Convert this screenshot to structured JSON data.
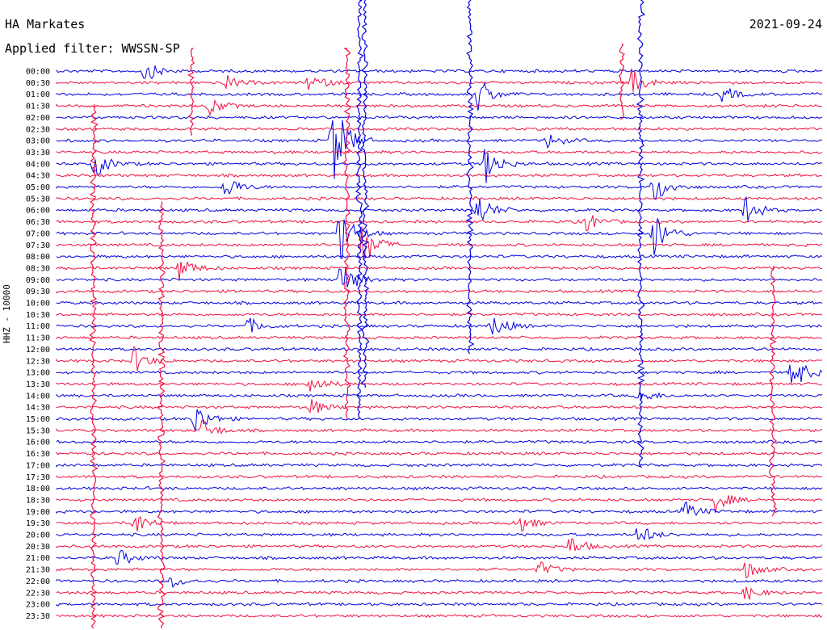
{
  "header": {
    "station": "HA Markates",
    "date": "2021-09-24",
    "filter": "Applied filter: WWSSN-SP"
  },
  "axis": {
    "ylabel": "HHZ - 10000"
  },
  "colors": {
    "line_a": "#0000e0",
    "line_b": "#f01040"
  },
  "chart_data": {
    "type": "line",
    "title": "HA Markates",
    "ylabel": "HHZ - 10000",
    "date": "2021-09-24",
    "filter": "WWSSN-SP",
    "rows": [
      "00:00",
      "00:30",
      "01:00",
      "01:30",
      "02:00",
      "02:30",
      "03:00",
      "03:30",
      "04:00",
      "04:30",
      "05:00",
      "05:30",
      "06:00",
      "06:30",
      "07:00",
      "07:30",
      "08:00",
      "08:30",
      "09:00",
      "09:30",
      "10:00",
      "10:30",
      "11:00",
      "11:30",
      "12:00",
      "12:30",
      "13:00",
      "13:30",
      "14:00",
      "14:30",
      "15:00",
      "15:30",
      "16:00",
      "16:30",
      "17:00",
      "17:30",
      "18:00",
      "18:30",
      "19:00",
      "19:30",
      "20:00",
      "20:30",
      "21:00",
      "21:30",
      "22:00",
      "22:30",
      "23:00",
      "23:30"
    ],
    "row_colors": [
      "blue",
      "red"
    ],
    "x_range_minutes": [
      0,
      30
    ],
    "events": [
      {
        "row": 0,
        "x": 0.115,
        "amp": 14
      },
      {
        "row": 1,
        "x": 0.22,
        "amp": 10
      },
      {
        "row": 1,
        "x": 0.33,
        "amp": 12
      },
      {
        "row": 1,
        "x": 0.75,
        "amp": 18
      },
      {
        "row": 2,
        "x": 0.55,
        "amp": 22
      },
      {
        "row": 2,
        "x": 0.87,
        "amp": 10
      },
      {
        "row": 3,
        "x": 0.2,
        "amp": 12
      },
      {
        "row": 6,
        "x": 0.36,
        "amp": 60
      },
      {
        "row": 6,
        "x": 0.64,
        "amp": 10
      },
      {
        "row": 8,
        "x": 0.05,
        "amp": 18
      },
      {
        "row": 8,
        "x": 0.56,
        "amp": 25
      },
      {
        "row": 10,
        "x": 0.22,
        "amp": 16
      },
      {
        "row": 10,
        "x": 0.78,
        "amp": 22
      },
      {
        "row": 12,
        "x": 0.55,
        "amp": 22
      },
      {
        "row": 12,
        "x": 0.9,
        "amp": 18
      },
      {
        "row": 13,
        "x": 0.69,
        "amp": 14
      },
      {
        "row": 14,
        "x": 0.37,
        "amp": 40
      },
      {
        "row": 14,
        "x": 0.78,
        "amp": 30
      },
      {
        "row": 15,
        "x": 0.4,
        "amp": 30
      },
      {
        "row": 17,
        "x": 0.16,
        "amp": 16
      },
      {
        "row": 18,
        "x": 0.37,
        "amp": 28
      },
      {
        "row": 22,
        "x": 0.25,
        "amp": 10
      },
      {
        "row": 22,
        "x": 0.57,
        "amp": 16
      },
      {
        "row": 25,
        "x": 0.1,
        "amp": 18
      },
      {
        "row": 26,
        "x": 0.96,
        "amp": 26
      },
      {
        "row": 27,
        "x": 0.33,
        "amp": 14
      },
      {
        "row": 28,
        "x": 0.76,
        "amp": 10
      },
      {
        "row": 29,
        "x": 0.33,
        "amp": 12
      },
      {
        "row": 30,
        "x": 0.18,
        "amp": 22
      },
      {
        "row": 31,
        "x": 0.19,
        "amp": 14
      },
      {
        "row": 37,
        "x": 0.86,
        "amp": 16
      },
      {
        "row": 38,
        "x": 0.82,
        "amp": 12
      },
      {
        "row": 39,
        "x": 0.1,
        "amp": 18
      },
      {
        "row": 39,
        "x": 0.6,
        "amp": 16
      },
      {
        "row": 40,
        "x": 0.76,
        "amp": 14
      },
      {
        "row": 41,
        "x": 0.67,
        "amp": 14
      },
      {
        "row": 42,
        "x": 0.08,
        "amp": 12
      },
      {
        "row": 43,
        "x": 0.63,
        "amp": 10
      },
      {
        "row": 43,
        "x": 0.9,
        "amp": 12
      },
      {
        "row": 44,
        "x": 0.15,
        "amp": 8
      },
      {
        "row": 45,
        "x": 0.9,
        "amp": 10
      }
    ],
    "spikes": [
      {
        "x": 445,
        "y0": 0,
        "y1": 520,
        "color": "blue"
      },
      {
        "x": 452,
        "y0": 0,
        "y1": 480,
        "color": "blue"
      },
      {
        "x": 582,
        "y0": 0,
        "y1": 440,
        "color": "blue"
      },
      {
        "x": 793,
        "y0": 0,
        "y1": 580,
        "color": "blue"
      },
      {
        "x": 430,
        "y0": 60,
        "y1": 520,
        "color": "red"
      },
      {
        "x": 116,
        "y0": 130,
        "y1": 780,
        "color": "red"
      },
      {
        "x": 200,
        "y0": 250,
        "y1": 780,
        "color": "red"
      },
      {
        "x": 957,
        "y0": 330,
        "y1": 640,
        "color": "red"
      },
      {
        "x": 237,
        "y0": 60,
        "y1": 170,
        "color": "red"
      },
      {
        "x": 770,
        "y0": 55,
        "y1": 150,
        "color": "red"
      }
    ]
  }
}
